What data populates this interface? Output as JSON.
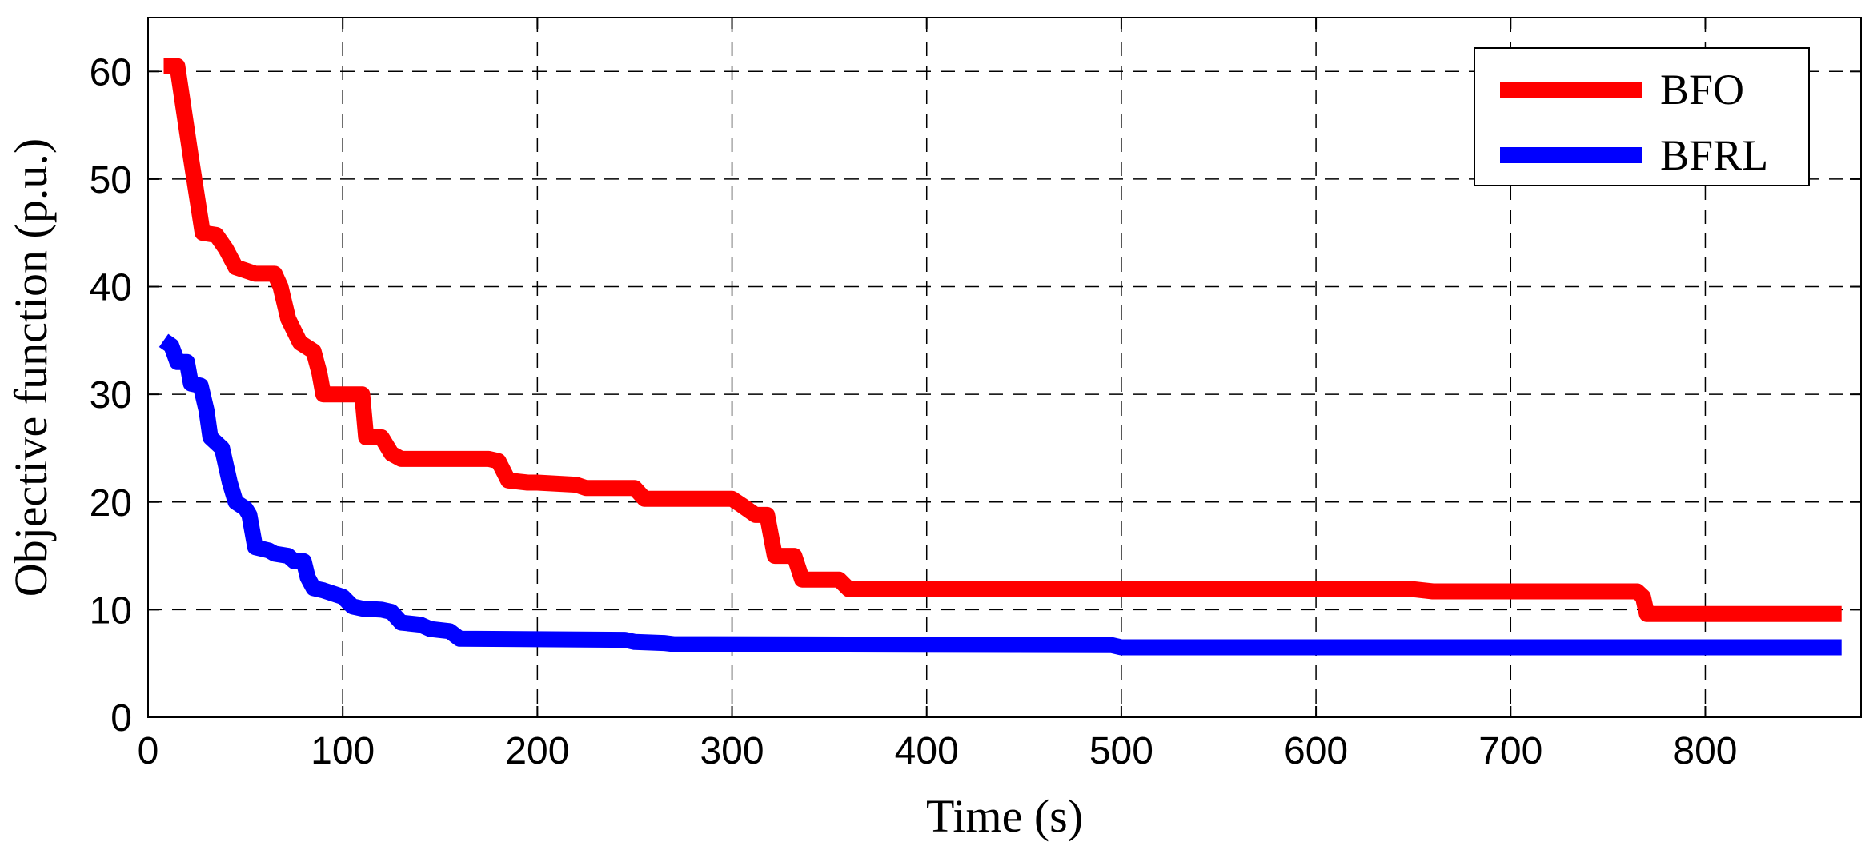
{
  "chart_data": {
    "type": "line",
    "xlabel": "Time (s)",
    "ylabel": "Objective function (p.u.)",
    "xlim": [
      0,
      880
    ],
    "ylim": [
      0,
      65
    ],
    "xticks": [
      0,
      100,
      200,
      300,
      400,
      500,
      600,
      700,
      800
    ],
    "yticks": [
      0,
      10,
      20,
      30,
      40,
      50,
      60
    ],
    "grid": true,
    "grid_style": "dashed",
    "legend_position": "top-right",
    "series": [
      {
        "name": "BFO",
        "color": "#ff0000",
        "x": [
          8,
          15,
          22,
          28,
          35,
          40,
          45,
          50,
          55,
          65,
          68,
          72,
          78,
          85,
          88,
          90,
          110,
          112,
          120,
          125,
          130,
          175,
          180,
          185,
          195,
          200,
          220,
          225,
          250,
          255,
          300,
          305,
          312,
          318,
          322,
          332,
          336,
          355,
          360,
          650,
          660,
          765,
          768,
          770,
          870
        ],
        "values": [
          60.5,
          60.5,
          52,
          45,
          44.8,
          43.5,
          41.8,
          41.5,
          41.2,
          41.2,
          40,
          37,
          34.8,
          34,
          32,
          30,
          30,
          26,
          26,
          24.5,
          24,
          24,
          23.8,
          22,
          21.8,
          21.8,
          21.6,
          21.3,
          21.3,
          20.3,
          20.3,
          19.7,
          18.8,
          18.8,
          15,
          15,
          12.8,
          12.8,
          11.9,
          11.9,
          11.7,
          11.7,
          11.2,
          9.6,
          9.6
        ]
      },
      {
        "name": "BFRL",
        "color": "#0000ff",
        "x": [
          8,
          12,
          15,
          20,
          22,
          27,
          30,
          32,
          38,
          42,
          45,
          50,
          52,
          55,
          62,
          65,
          72,
          75,
          80,
          82,
          85,
          90,
          100,
          105,
          110,
          120,
          125,
          130,
          140,
          145,
          155,
          160,
          245,
          250,
          265,
          270,
          495,
          500,
          870
        ],
        "values": [
          35,
          34.5,
          33,
          33,
          31,
          30.8,
          28.5,
          26,
          25,
          21.8,
          20,
          19.4,
          18.8,
          15.8,
          15.5,
          15.2,
          15,
          14.5,
          14.5,
          13,
          12,
          11.8,
          11.2,
          10.3,
          10.1,
          10,
          9.8,
          8.8,
          8.6,
          8.2,
          8,
          7.3,
          7.2,
          7,
          6.9,
          6.8,
          6.7,
          6.5,
          6.5
        ]
      }
    ]
  }
}
